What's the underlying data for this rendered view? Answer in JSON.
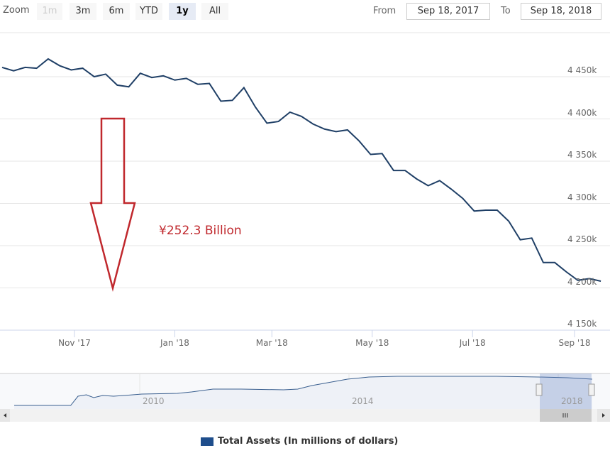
{
  "range_selector": {
    "zoom_label": "Zoom",
    "buttons": [
      {
        "label": "1m",
        "state": "disabled"
      },
      {
        "label": "3m",
        "state": "normal"
      },
      {
        "label": "6m",
        "state": "normal"
      },
      {
        "label": "YTD",
        "state": "normal"
      },
      {
        "label": "1y",
        "state": "active"
      },
      {
        "label": "All",
        "state": "normal"
      }
    ],
    "from_label": "From",
    "from_value": "Sep 18, 2017",
    "to_label": "To",
    "to_value": "Sep 18, 2018"
  },
  "annotation": {
    "text": "¥252.3 Billion",
    "color": "#c0282d"
  },
  "legend": {
    "label": "Total Assets (In millions of dollars)",
    "color": "#1f4e8c"
  },
  "chart_data": {
    "type": "line",
    "title": "",
    "series": [
      {
        "name": "Total Assets (In millions of dollars)",
        "color": "#1f3f66",
        "start_date": "2017-09-18",
        "interval_days": 7,
        "unit": "thousands of millions (k)",
        "values": [
          4461,
          4457,
          4461,
          4460,
          4471,
          4463,
          4458,
          4460,
          4450,
          4453,
          4440,
          4438,
          4454,
          4449,
          4451,
          4446,
          4448,
          4441,
          4442,
          4421,
          4422,
          4437,
          4414,
          4395,
          4397,
          4408,
          4403,
          4394,
          4388,
          4385,
          4387,
          4374,
          4358,
          4359,
          4339,
          4339,
          4329,
          4321,
          4327,
          4317,
          4306,
          4291,
          4292,
          4292,
          4279,
          4257,
          4259,
          4230,
          4230,
          4219,
          4209,
          4211,
          4208
        ]
      }
    ],
    "ylim": [
      4150,
      4480
    ],
    "y_ticks": [
      "4 150k",
      "4 200k",
      "4 250k",
      "4 300k",
      "4 350k",
      "4 400k",
      "4 450k"
    ],
    "y_tick_values": [
      4150,
      4200,
      4250,
      4300,
      4350,
      4400,
      4450
    ],
    "x_ticks": [
      "Nov '17",
      "Jan '18",
      "Mar '18",
      "May '18",
      "Jul '18",
      "Sep '18"
    ],
    "x_tick_dates": [
      "2017-11-01",
      "2018-01-01",
      "2018-03-01",
      "2018-05-01",
      "2018-07-01",
      "2018-09-01"
    ],
    "grid": true,
    "legend_position": "bottom-center",
    "navigator": {
      "x_ticks": [
        "2010",
        "2014",
        "2018"
      ],
      "x_tick_years": [
        2010,
        2014,
        2018
      ],
      "selected_range": [
        "2017-09-18",
        "2018-09-18"
      ],
      "points": [
        [
          2007.6,
          900
        ],
        [
          2008.68,
          900
        ],
        [
          2008.82,
          2041
        ],
        [
          2008.98,
          2217
        ],
        [
          2009.12,
          1866
        ],
        [
          2009.29,
          2129
        ],
        [
          2009.5,
          2041
        ],
        [
          2009.7,
          2129
        ],
        [
          2010.04,
          2305
        ],
        [
          2010.72,
          2393
        ],
        [
          2010.99,
          2568
        ],
        [
          2011.4,
          2920
        ],
        [
          2011.94,
          2920
        ],
        [
          2012.75,
          2832
        ],
        [
          2013.02,
          2920
        ],
        [
          2013.29,
          3359
        ],
        [
          2013.97,
          4149
        ],
        [
          2014.38,
          4412
        ],
        [
          2014.92,
          4500
        ],
        [
          2016.82,
          4500
        ],
        [
          2017.63,
          4412
        ],
        [
          2018.18,
          4324
        ],
        [
          2018.65,
          4149
        ]
      ]
    }
  }
}
